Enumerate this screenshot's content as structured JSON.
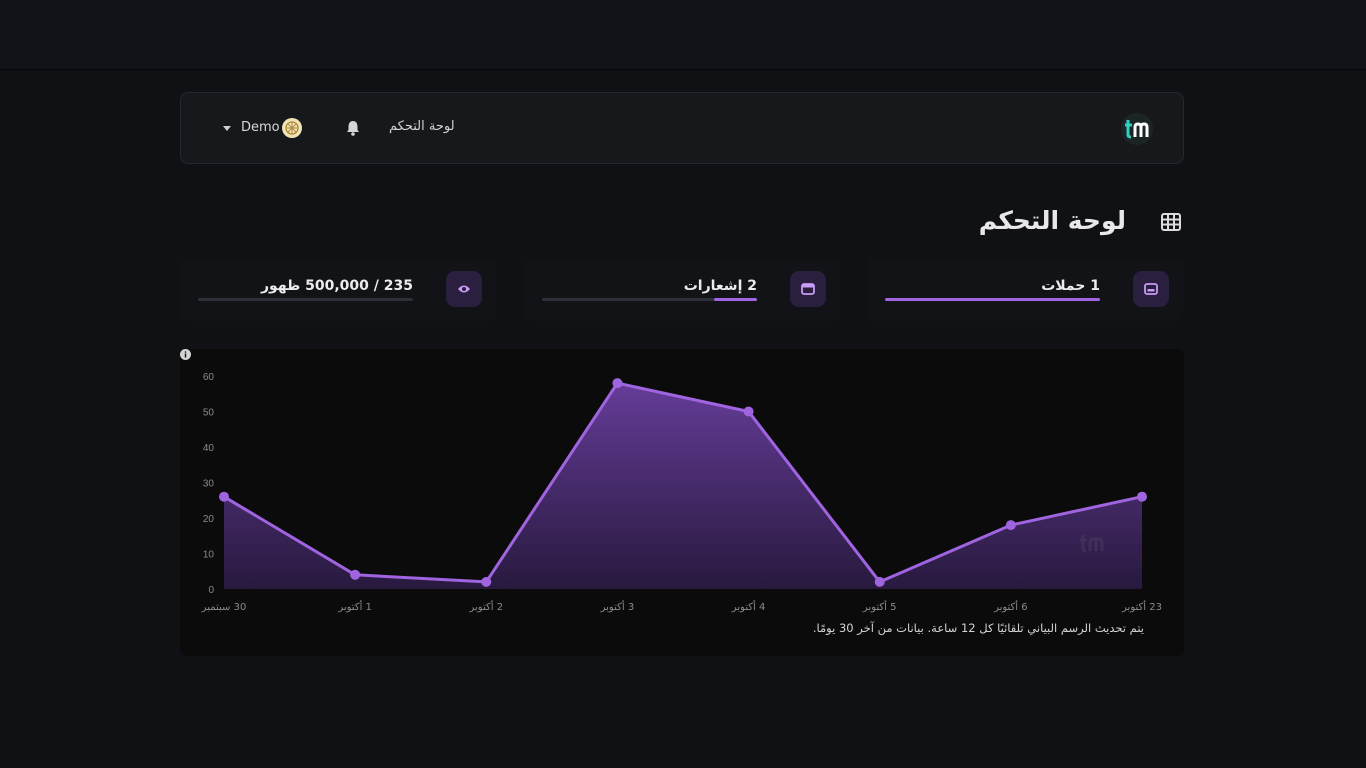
{
  "navbar": {
    "dashboard_link": "لوحة التحكم",
    "user_name": "Demo"
  },
  "page": {
    "title": "لوحة التحكم"
  },
  "stats": [
    {
      "label": "1 حملات",
      "icon": "campaign-icon",
      "progress": 1.0
    },
    {
      "label": "2 إشعارات",
      "icon": "notification-card-icon",
      "progress": 0.2
    },
    {
      "label": "235 / 500,000 ظهور",
      "icon": "eye-icon",
      "progress": 0.0
    }
  ],
  "chart_data": {
    "type": "area",
    "categories": [
      "30 سبتمبر",
      "1 أكتوبر",
      "2 أكتوبر",
      "3 أكتوبر",
      "4 أكتوبر",
      "5 أكتوبر",
      "6 أكتوبر",
      "23 أكتوبر"
    ],
    "values": [
      26,
      4,
      2,
      58,
      50,
      2,
      18,
      26
    ],
    "ylim": [
      0,
      60
    ],
    "yticks": [
      0,
      10,
      20,
      30,
      40,
      50,
      60
    ],
    "grid": false,
    "color": "#a064e0"
  },
  "chart_note": "يتم تحديث الرسم البياني تلقائيًا كل 12 ساعة. بيانات من آخر 30 يومًا."
}
